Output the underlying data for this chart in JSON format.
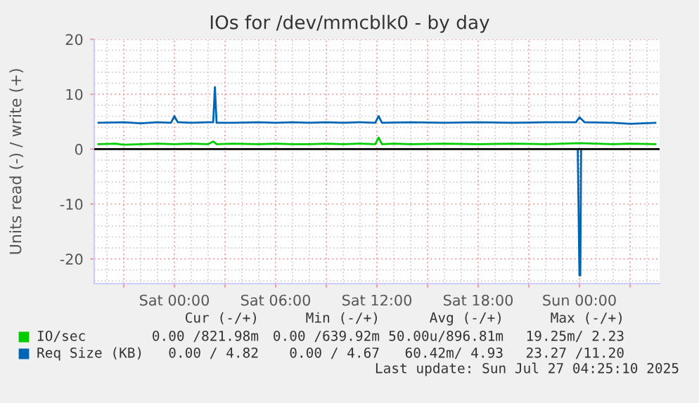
{
  "chart_data": {
    "type": "line",
    "title": "IOs for /dev/mmcblk0 - by day",
    "ylabel": "Units read (-) / write (+)",
    "xlim": [
      "2025-07-25T19:15",
      "2025-07-27T04:45"
    ],
    "xticks": [
      {
        "value": "2025-07-25T21:00",
        "label": null
      },
      {
        "value": "2025-07-26T00:00",
        "label": "Sat 00:00"
      },
      {
        "value": "2025-07-26T03:00",
        "label": null
      },
      {
        "value": "2025-07-26T06:00",
        "label": "Sat 06:00"
      },
      {
        "value": "2025-07-26T09:00",
        "label": null
      },
      {
        "value": "2025-07-26T12:00",
        "label": "Sat 12:00"
      },
      {
        "value": "2025-07-26T15:00",
        "label": null
      },
      {
        "value": "2025-07-26T18:00",
        "label": "Sat 18:00"
      },
      {
        "value": "2025-07-26T21:00",
        "label": null
      },
      {
        "value": "2025-07-27T00:00",
        "label": "Sun 00:00"
      },
      {
        "value": "2025-07-27T03:00",
        "label": null
      }
    ],
    "ylim": [
      -24.5,
      20
    ],
    "yticks": [
      -20,
      -10,
      0,
      10,
      20
    ],
    "grid": true,
    "legend": "bottom",
    "ref_lines": [
      {
        "axis": "y",
        "value": 0,
        "color": "#000000"
      }
    ],
    "series": [
      {
        "name": "IO/sec",
        "color": "#00cc00",
        "x": [
          "2025-07-25T19:30",
          "2025-07-25T20:30",
          "2025-07-25T21:00",
          "2025-07-25T22:00",
          "2025-07-25T23:00",
          "2025-07-26T00:00",
          "2025-07-26T01:00",
          "2025-07-26T02:00",
          "2025-07-26T02:18",
          "2025-07-26T02:30",
          "2025-07-26T03:30",
          "2025-07-26T05:00",
          "2025-07-26T06:00",
          "2025-07-26T07:00",
          "2025-07-26T08:00",
          "2025-07-26T09:00",
          "2025-07-26T10:00",
          "2025-07-26T11:00",
          "2025-07-26T11:54",
          "2025-07-26T12:06",
          "2025-07-26T12:18",
          "2025-07-26T13:00",
          "2025-07-26T14:00",
          "2025-07-26T16:00",
          "2025-07-26T18:00",
          "2025-07-26T20:00",
          "2025-07-26T22:00",
          "2025-07-26T23:00",
          "2025-07-27T00:00",
          "2025-07-27T01:00",
          "2025-07-27T02:00",
          "2025-07-27T03:00",
          "2025-07-27T04:30"
        ],
        "values": [
          0.9,
          1.0,
          0.8,
          0.9,
          1.0,
          0.9,
          1.0,
          0.9,
          1.4,
          0.9,
          1.0,
          0.9,
          1.0,
          0.9,
          0.9,
          1.0,
          0.9,
          1.0,
          0.9,
          2.1,
          0.9,
          1.0,
          0.9,
          1.0,
          0.9,
          1.0,
          0.9,
          1.0,
          1.1,
          1.0,
          0.9,
          1.0,
          0.9
        ]
      },
      {
        "name": "Req Size (KB)",
        "color": "#0066b3",
        "x": [
          "2025-07-25T19:30",
          "2025-07-25T21:00",
          "2025-07-25T22:00",
          "2025-07-25T23:00",
          "2025-07-25T23:48",
          "2025-07-26T00:00",
          "2025-07-26T00:12",
          "2025-07-26T01:00",
          "2025-07-26T02:00",
          "2025-07-26T02:18",
          "2025-07-26T02:24",
          "2025-07-26T02:30",
          "2025-07-26T03:30",
          "2025-07-26T05:00",
          "2025-07-26T06:00",
          "2025-07-26T07:00",
          "2025-07-26T08:00",
          "2025-07-26T09:00",
          "2025-07-26T10:00",
          "2025-07-26T11:00",
          "2025-07-26T11:54",
          "2025-07-26T12:06",
          "2025-07-26T12:18",
          "2025-07-26T14:00",
          "2025-07-26T16:00",
          "2025-07-26T18:00",
          "2025-07-26T20:00",
          "2025-07-26T22:00",
          "2025-07-26T23:48",
          "2025-07-27T00:00",
          "2025-07-27T00:18",
          "2025-07-27T02:00",
          "2025-07-27T03:00",
          "2025-07-27T04:30"
        ],
        "values": [
          4.8,
          4.9,
          4.7,
          4.9,
          4.8,
          6.0,
          4.9,
          4.8,
          4.9,
          4.9,
          11.3,
          4.8,
          4.8,
          4.9,
          4.8,
          4.9,
          4.8,
          4.9,
          4.8,
          4.9,
          4.8,
          6.0,
          4.8,
          4.9,
          4.8,
          4.9,
          4.8,
          4.9,
          4.9,
          5.8,
          4.9,
          4.8,
          4.6,
          4.8
        ]
      },
      {
        "color": "#0066b3",
        "x": [
          "2025-07-26T23:54",
          "2025-07-27T00:00",
          "2025-07-27T00:03",
          "2025-07-27T00:06"
        ],
        "values": [
          0,
          -23,
          -23,
          0
        ]
      }
    ],
    "annotations": [
      "Cur (-/+)",
      "Min (-/+)",
      "Avg (-/+)",
      "Max (-/+)",
      "0.00 /821.98m",
      "0.00 /639.92m",
      "50.00u/896.81m",
      "19.25m/ 2.23",
      "0.00 / 4.82",
      "0.00 / 4.67",
      "60.42m/ 4.93",
      "23.27 /11.20",
      "Last update: Sun Jul 27 04:25:10 2025"
    ]
  }
}
